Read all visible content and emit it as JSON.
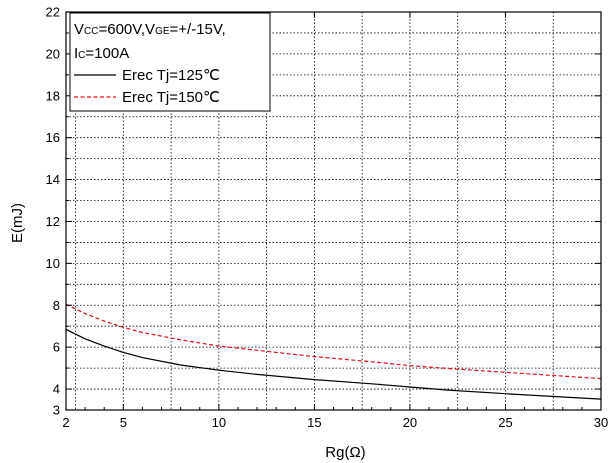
{
  "chart_data": {
    "type": "line",
    "xlabel": "Rg(Ω)",
    "ylabel": "E(mJ)",
    "xlim": [
      2,
      30
    ],
    "ylim": [
      3,
      22
    ],
    "x_ticks": [
      2,
      5,
      10,
      15,
      20,
      25,
      30
    ],
    "y_ticks": [
      3,
      4,
      6,
      8,
      10,
      12,
      14,
      16,
      18,
      20,
      22
    ],
    "grid": true,
    "legend_position": "top-left",
    "annotations": {
      "conditions_line1": {
        "vcc_main": "V",
        "vcc_sub": "CC",
        "eq1": "=600V,V",
        "vge_sub": "GE",
        "eq2": "=+/-15V,"
      },
      "conditions_line2": {
        "ic_main": "I",
        "ic_sub": "C",
        "eq": "=100A"
      }
    },
    "series": [
      {
        "name": "Erec Tj=125℃",
        "color": "#000000",
        "dash": "solid",
        "x": [
          2,
          3,
          4,
          5,
          6,
          8,
          10,
          12,
          15,
          18,
          20,
          22,
          25,
          28,
          30
        ],
        "y": [
          6.85,
          6.4,
          6.05,
          5.75,
          5.5,
          5.15,
          4.9,
          4.7,
          4.45,
          4.25,
          4.1,
          3.95,
          3.78,
          3.62,
          3.52
        ]
      },
      {
        "name": "Erec Tj=150℃",
        "color": "#e0101a",
        "dash": "dashed",
        "x": [
          2,
          3,
          4,
          5,
          6,
          8,
          10,
          12,
          15,
          18,
          20,
          22,
          25,
          28,
          30
        ],
        "y": [
          8.05,
          7.6,
          7.25,
          6.95,
          6.7,
          6.35,
          6.05,
          5.85,
          5.55,
          5.3,
          5.12,
          4.98,
          4.8,
          4.62,
          4.5
        ]
      }
    ]
  }
}
